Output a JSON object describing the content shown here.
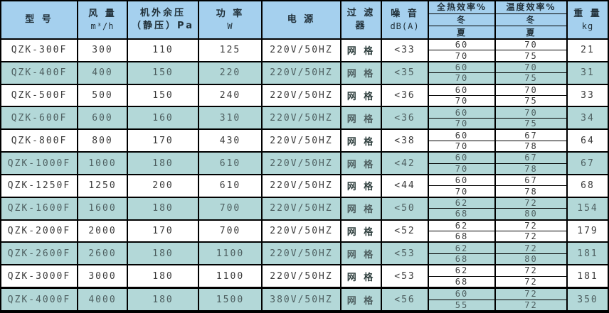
{
  "colors": {
    "header_bg": "#a5d0ee",
    "alt_row_bg": "#b3d8d8",
    "border": "#000000",
    "text": "#3a3a3a"
  },
  "chart_data": {
    "type": "table",
    "headers": {
      "model": "型 号",
      "airflow_title": "风 量",
      "airflow_unit": "m³/h",
      "pressure_title": "机外余压",
      "pressure_unit": "（静压）Pa",
      "power_title": "功 率",
      "power_unit": "W",
      "supply": "电 源",
      "filter_line1": "过 滤",
      "filter_line2": "器",
      "noise_title": "噪 音",
      "noise_unit": "dB(A)",
      "heat_eff": "全热效率%",
      "temp_eff": "温度效率%",
      "winter": "冬",
      "summer": "夏",
      "weight_title": "重 量",
      "weight_unit": "kg"
    },
    "rows": [
      {
        "model": "QZK-300F",
        "airflow": "300",
        "pressure": "110",
        "power": "125",
        "supply": "220V/50HZ",
        "filter": "网 格",
        "noise": "<33",
        "heat_winter": "60",
        "heat_summer": "70",
        "temp_winter": "70",
        "temp_summer": "75",
        "weight": "21"
      },
      {
        "model": "QZK-400F",
        "airflow": "400",
        "pressure": "150",
        "power": "220",
        "supply": "220V/50HZ",
        "filter": "网 格",
        "noise": "<35",
        "heat_winter": "60",
        "heat_summer": "70",
        "temp_winter": "70",
        "temp_summer": "75",
        "weight": "31"
      },
      {
        "model": "QZK-500F",
        "airflow": "500",
        "pressure": "150",
        "power": "240",
        "supply": "220V/50HZ",
        "filter": "网 格",
        "noise": "<36",
        "heat_winter": "60",
        "heat_summer": "70",
        "temp_winter": "70",
        "temp_summer": "75",
        "weight": "33"
      },
      {
        "model": "QZK-600F",
        "airflow": "600",
        "pressure": "160",
        "power": "310",
        "supply": "220V/50HZ",
        "filter": "网 格",
        "noise": "<36",
        "heat_winter": "60",
        "heat_summer": "70",
        "temp_winter": "70",
        "temp_summer": "75",
        "weight": "34"
      },
      {
        "model": "QZK-800F",
        "airflow": "800",
        "pressure": "170",
        "power": "430",
        "supply": "220V/50HZ",
        "filter": "网 格",
        "noise": "<38",
        "heat_winter": "60",
        "heat_summer": "70",
        "temp_winter": "67",
        "temp_summer": "78",
        "weight": "64"
      },
      {
        "model": "QZK-1000F",
        "airflow": "1000",
        "pressure": "180",
        "power": "610",
        "supply": "220V/50HZ",
        "filter": "网 格",
        "noise": "<42",
        "heat_winter": "60",
        "heat_summer": "70",
        "temp_winter": "67",
        "temp_summer": "78",
        "weight": "67"
      },
      {
        "model": "QZK-1250F",
        "airflow": "1250",
        "pressure": "200",
        "power": "610",
        "supply": "220V/50HZ",
        "filter": "网 格",
        "noise": "<44",
        "heat_winter": "60",
        "heat_summer": "70",
        "temp_winter": "67",
        "temp_summer": "78",
        "weight": "68"
      },
      {
        "model": "QZK-1600F",
        "airflow": "1600",
        "pressure": "180",
        "power": "700",
        "supply": "220V/50HZ",
        "filter": "网 格",
        "noise": "<50",
        "heat_winter": "62",
        "heat_summer": "68",
        "temp_winter": "72",
        "temp_summer": "80",
        "weight": "154"
      },
      {
        "model": "QZK-2000F",
        "airflow": "2000",
        "pressure": "170",
        "power": "700",
        "supply": "220V/50HZ",
        "filter": "网 格",
        "noise": "<52",
        "heat_winter": "62",
        "heat_summer": "68",
        "temp_winter": "72",
        "temp_summer": "72",
        "weight": "179"
      },
      {
        "model": "QZK-2600F",
        "airflow": "2600",
        "pressure": "180",
        "power": "1100",
        "supply": "220V/50HZ",
        "filter": "网 格",
        "noise": "<53",
        "heat_winter": "62",
        "heat_summer": "68",
        "temp_winter": "72",
        "temp_summer": "80",
        "weight": "181"
      },
      {
        "model": "QZK-3000F",
        "airflow": "3000",
        "pressure": "180",
        "power": "1100",
        "supply": "220V/50HZ",
        "filter": "网 格",
        "noise": "<53",
        "heat_winter": "62",
        "heat_summer": "68",
        "temp_winter": "72",
        "temp_summer": "72",
        "weight": "181"
      },
      {
        "model": "QZK-4000F",
        "airflow": "4000",
        "pressure": "180",
        "power": "1500",
        "supply": "380V/50HZ",
        "filter": "网 格",
        "noise": "<56",
        "heat_winter": "60",
        "heat_summer": "55",
        "temp_winter": "72",
        "temp_summer": "72",
        "weight": "350"
      }
    ]
  }
}
